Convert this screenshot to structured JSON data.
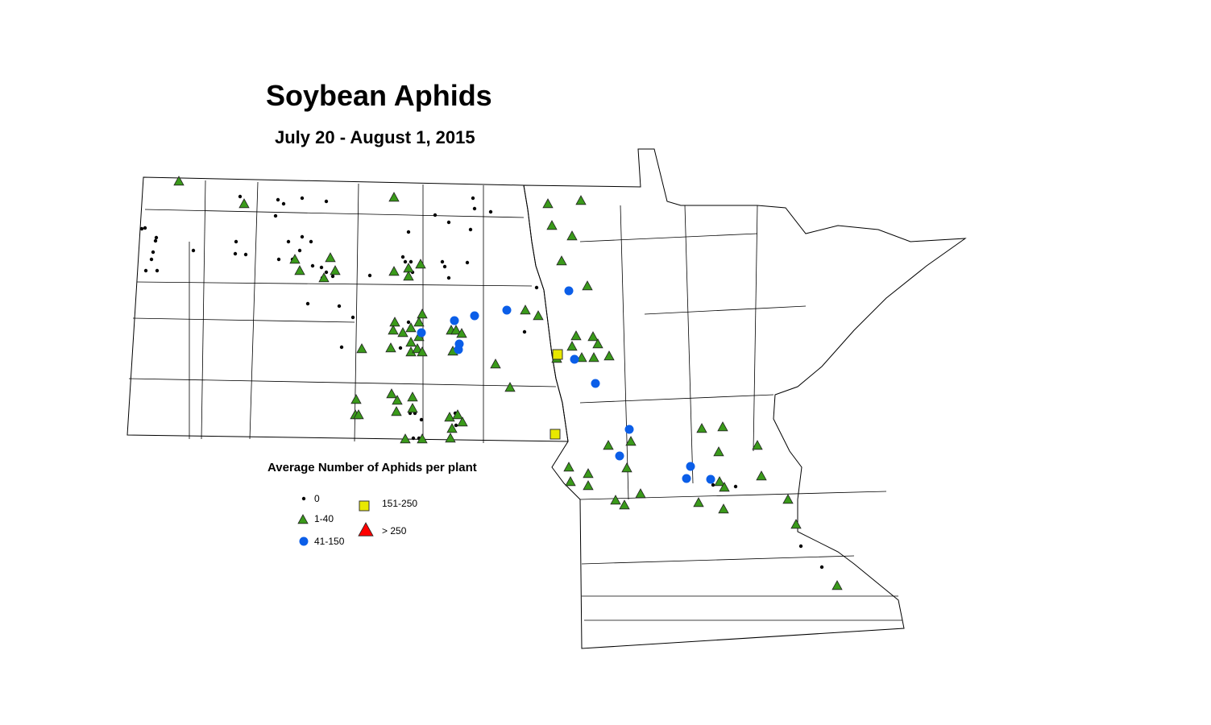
{
  "title": "Soybean Aphids",
  "subtitle": "July 20 - August 1, 2015",
  "legend": {
    "title": "Average Number of Aphids per plant",
    "classes": [
      {
        "label": "0",
        "symbol": "dot",
        "color": "#000000"
      },
      {
        "label": "1-40",
        "symbol": "triangle",
        "color": "#3a9a1a"
      },
      {
        "label": "41-150",
        "symbol": "circle",
        "color": "#0b5ee8"
      },
      {
        "label": "151-250",
        "symbol": "square",
        "color": "#e8e800"
      },
      {
        "label": "> 250",
        "symbol": "triangle",
        "color": "#ff0000"
      }
    ]
  }
}
